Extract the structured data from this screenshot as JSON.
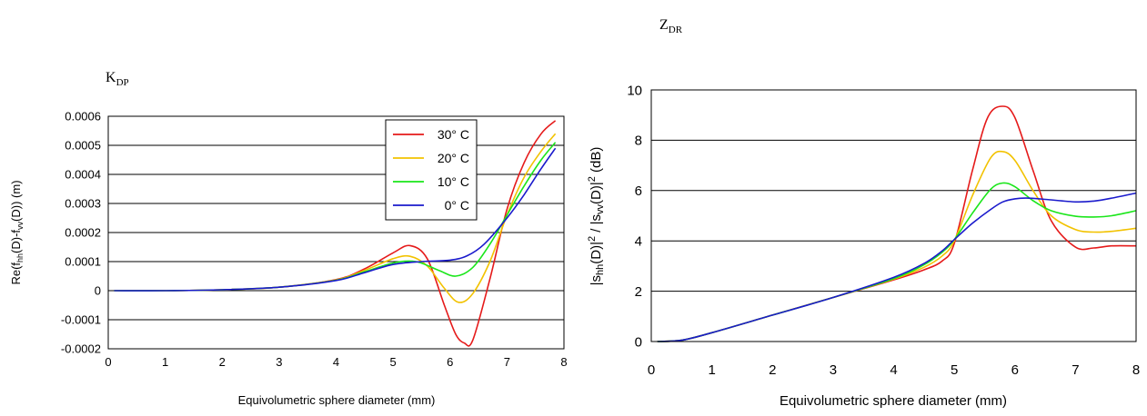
{
  "chart_data": [
    {
      "type": "line",
      "title": "K",
      "title_subscript": "DP",
      "xlabel": "Equivolumetric sphere diameter (mm)",
      "ylabel_parts": [
        "Re(f",
        "hh",
        "(D)-f",
        "vv",
        "(D))  (m)"
      ],
      "xlim": [
        0,
        8
      ],
      "ylim": [
        -0.0002,
        0.0006
      ],
      "x_ticks": [
        "0",
        "1",
        "2",
        "3",
        "4",
        "5",
        "6",
        "7",
        "8"
      ],
      "y_ticks": [
        "-0.0002",
        "-0.0001",
        "0",
        "0.0001",
        "0.0002",
        "0.0003",
        "0.0004",
        "0.0005",
        "0.0006"
      ],
      "grid": "horizontal",
      "legend_position": "top-right",
      "series": [
        {
          "name": "30° C",
          "color": "#e51a1a",
          "x": [
            0.1,
            1,
            2,
            3,
            4,
            4.5,
            5,
            5.3,
            5.6,
            5.9,
            6.1,
            6.25,
            6.4,
            6.7,
            7,
            7.3,
            7.6,
            7.85
          ],
          "y": [
            0,
            0,
            3e-06,
            1.2e-05,
            3.8e-05,
            7.5e-05,
            0.00013,
            0.000155,
            0.00011,
            -5e-05,
            -0.00015,
            -0.00018,
            -0.00017,
            4e-05,
            0.00028,
            0.00044,
            0.00054,
            0.000585
          ]
        },
        {
          "name": "20° C",
          "color": "#f2c200",
          "x": [
            0.1,
            1,
            2,
            3,
            4,
            4.5,
            5,
            5.3,
            5.6,
            5.9,
            6.15,
            6.4,
            6.7,
            7,
            7.3,
            7.6,
            7.85
          ],
          "y": [
            0,
            0,
            3e-06,
            1.2e-05,
            3.7e-05,
            7e-05,
            0.00011,
            0.000118,
            8.5e-05,
            8e-06,
            -4e-05,
            -1e-05,
            0.0001,
            0.00026,
            0.00039,
            0.00048,
            0.00054
          ]
        },
        {
          "name": "10° C",
          "color": "#1ae61a",
          "x": [
            0.1,
            1,
            2,
            3,
            4,
            4.5,
            5,
            5.4,
            5.8,
            6.1,
            6.4,
            6.7,
            7,
            7.3,
            7.6,
            7.85
          ],
          "y": [
            0,
            0,
            3e-06,
            1.2e-05,
            3.6e-05,
            6.5e-05,
            9.5e-05,
            0.0001,
            7e-05,
            5e-05,
            8e-05,
            0.00016,
            0.00026,
            0.00036,
            0.00045,
            0.00051
          ]
        },
        {
          "name": "0° C",
          "color": "#1a1acc",
          "x": [
            0.1,
            1,
            2,
            3,
            4,
            4.5,
            5,
            5.5,
            6,
            6.3,
            6.6,
            7,
            7.3,
            7.6,
            7.85
          ],
          "y": [
            0,
            0,
            3e-06,
            1.2e-05,
            3.5e-05,
            6.2e-05,
            9e-05,
            0.0001,
            0.000105,
            0.00012,
            0.00016,
            0.00025,
            0.00033,
            0.00042,
            0.00049
          ]
        }
      ]
    },
    {
      "type": "line",
      "title": "Z",
      "title_subscript": "DR",
      "xlabel": "Equivolumetric sphere diameter (mm)",
      "ylabel_parts": [
        "|s",
        "hh",
        "(D)|",
        "2",
        " / |s",
        "vv",
        "(D)|",
        "2",
        " (dB)"
      ],
      "xlim": [
        0,
        8
      ],
      "ylim": [
        0,
        10
      ],
      "x_ticks": [
        "0",
        "1",
        "2",
        "3",
        "4",
        "5",
        "6",
        "7",
        "8"
      ],
      "y_ticks": [
        "0",
        "2",
        "4",
        "6",
        "8",
        "10"
      ],
      "grid": "horizontal",
      "series": [
        {
          "color": "#e51a1a",
          "x": [
            0.1,
            0.5,
            1,
            2,
            3,
            4,
            4.5,
            4.8,
            5,
            5.3,
            5.55,
            5.8,
            6,
            6.3,
            6.6,
            7,
            7.3,
            7.6,
            8
          ],
          "y": [
            0,
            0.05,
            0.35,
            1.05,
            1.75,
            2.45,
            2.85,
            3.2,
            3.9,
            6.8,
            8.9,
            9.35,
            8.9,
            6.8,
            4.8,
            3.75,
            3.72,
            3.8,
            3.8
          ]
        },
        {
          "color": "#f2c200",
          "x": [
            0.1,
            0.5,
            1,
            2,
            3,
            4,
            4.5,
            4.8,
            5,
            5.3,
            5.6,
            5.8,
            6,
            6.3,
            6.6,
            7,
            7.3,
            7.6,
            8
          ],
          "y": [
            0,
            0.05,
            0.35,
            1.05,
            1.75,
            2.48,
            2.95,
            3.4,
            4.0,
            5.8,
            7.3,
            7.55,
            7.2,
            6.0,
            5.0,
            4.45,
            4.35,
            4.38,
            4.5
          ]
        },
        {
          "color": "#1ae61a",
          "x": [
            0.1,
            0.5,
            1,
            2,
            3,
            4,
            4.5,
            4.8,
            5,
            5.3,
            5.6,
            5.8,
            6,
            6.3,
            6.6,
            7,
            7.3,
            7.6,
            8
          ],
          "y": [
            0,
            0.05,
            0.35,
            1.05,
            1.75,
            2.5,
            3.05,
            3.55,
            4.05,
            5.1,
            6.05,
            6.3,
            6.15,
            5.6,
            5.2,
            4.98,
            4.95,
            5.0,
            5.2
          ]
        },
        {
          "color": "#1a1acc",
          "x": [
            0.1,
            0.5,
            1,
            2,
            3,
            4,
            4.5,
            4.8,
            5,
            5.3,
            5.6,
            5.8,
            6,
            6.2,
            6.5,
            7,
            7.3,
            7.6,
            8
          ],
          "y": [
            0,
            0.05,
            0.35,
            1.05,
            1.75,
            2.55,
            3.1,
            3.6,
            4.05,
            4.7,
            5.25,
            5.55,
            5.67,
            5.7,
            5.65,
            5.55,
            5.58,
            5.7,
            5.9
          ]
        }
      ]
    }
  ]
}
